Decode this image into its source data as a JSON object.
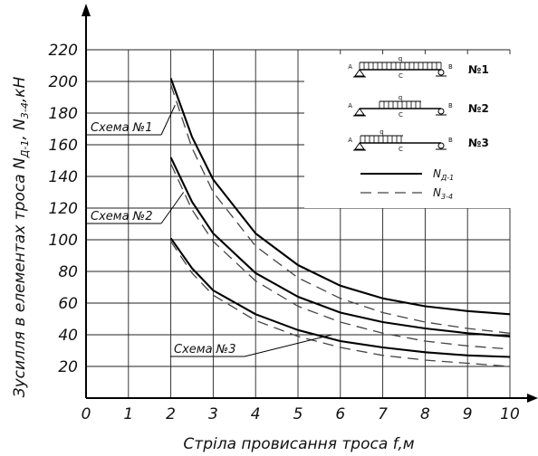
{
  "chart_data": {
    "type": "line",
    "xlabel": "Стріла провисання троса f,м",
    "ylabel": "Зусилля в елементах троса N",
    "ylabel_sub1": "Д-1",
    "ylabel_sep": ", N",
    "ylabel_sub2": "3-4",
    "ylabel_unit": ",кН",
    "xlim": [
      0,
      10
    ],
    "ylim": [
      0,
      220
    ],
    "xticks": [
      0,
      1,
      2,
      3,
      4,
      5,
      6,
      7,
      8,
      9,
      10
    ],
    "yticks": [
      20,
      40,
      60,
      80,
      100,
      120,
      140,
      160,
      180,
      200,
      220
    ],
    "grid": true,
    "legend_position": "top-right",
    "series": [
      {
        "name": "Схема №1",
        "line": "N_Д-1",
        "x": [
          2,
          2.5,
          3,
          4,
          5,
          6,
          7,
          8,
          9,
          10
        ],
        "y": [
          202,
          165,
          138,
          104,
          84,
          71,
          63,
          58,
          55,
          53
        ]
      },
      {
        "name": "Схема №1",
        "line": "N_3-4",
        "x": [
          2,
          2.5,
          3,
          4,
          5,
          6,
          7,
          8,
          9,
          10
        ],
        "y": [
          198,
          158,
          130,
          96,
          76,
          63,
          54,
          48,
          44,
          41
        ]
      },
      {
        "name": "Схема №2",
        "line": "N_Д-1",
        "x": [
          2,
          2.5,
          3,
          4,
          5,
          6,
          7,
          8,
          9,
          10
        ],
        "y": [
          152,
          124,
          104,
          79,
          64,
          54,
          48,
          44,
          41,
          39
        ]
      },
      {
        "name": "Схема №2",
        "line": "N_3-4",
        "x": [
          2,
          2.5,
          3,
          4,
          5,
          6,
          7,
          8,
          9,
          10
        ],
        "y": [
          148,
          119,
          99,
          74,
          58,
          48,
          41,
          36,
          33,
          31
        ]
      },
      {
        "name": "Схема №3",
        "line": "N_Д-1",
        "x": [
          2,
          2.5,
          3,
          4,
          5,
          6,
          7,
          8,
          9,
          10
        ],
        "y": [
          101,
          82,
          68,
          53,
          43,
          36,
          32,
          29,
          27,
          26
        ]
      },
      {
        "name": "Схема №3",
        "line": "N_3-4",
        "x": [
          2,
          2.5,
          3,
          4,
          5,
          6,
          7,
          8,
          9,
          10
        ],
        "y": [
          99,
          79,
          65,
          49,
          39,
          32,
          27,
          24,
          22,
          20
        ]
      }
    ],
    "annotations": [
      {
        "text": "Схема №1",
        "target_x": 2.1,
        "target_y": 185
      },
      {
        "text": "Схема №2",
        "target_x": 2.3,
        "target_y": 130
      },
      {
        "text": "Схема №3",
        "target_x": 5.8,
        "target_y": 40
      }
    ],
    "legend": {
      "schemes": [
        {
          "label": "№1",
          "load": "full"
        },
        {
          "label": "№2",
          "load": "center"
        },
        {
          "label": "№3",
          "load": "left"
        }
      ],
      "node_a": "A",
      "node_b": "B",
      "node_c": "C",
      "load_q": "q",
      "lines": [
        {
          "label": "N",
          "sub": "Д-1",
          "style": "solid"
        },
        {
          "label": "N",
          "sub": "3-4",
          "style": "dashed"
        }
      ]
    }
  }
}
